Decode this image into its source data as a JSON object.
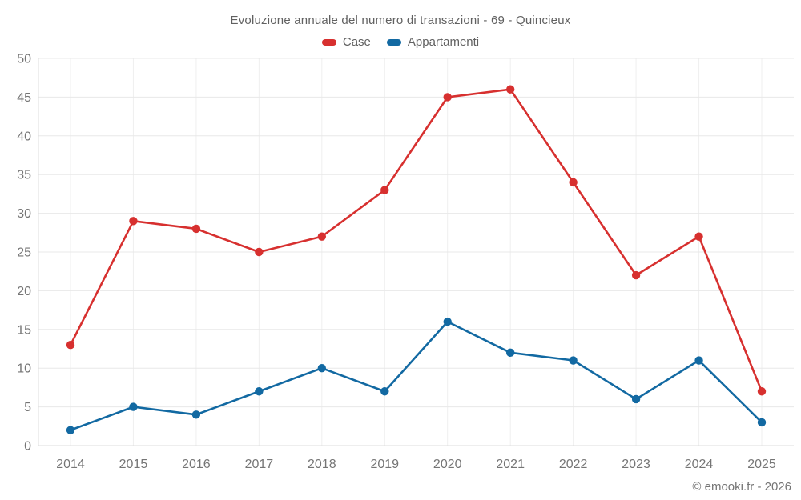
{
  "title": "Evoluzione annuale del numero di transazioni - 69 - Quincieux",
  "legend": [
    {
      "label": "Case",
      "color": "#d7302f"
    },
    {
      "label": "Appartamenti",
      "color": "#1269a2"
    }
  ],
  "footer": "© emooki.fr - 2026",
  "colors": {
    "case_red": "#d7302f",
    "appartamenti_blue": "#1269a2",
    "gridline": "#e8e8e8",
    "axis_line": "#dcdcdc",
    "tick_text": "#757575",
    "title_text": "#616161"
  },
  "chart_data": {
    "type": "line",
    "categories": [
      "2014",
      "2015",
      "2016",
      "2017",
      "2018",
      "2019",
      "2020",
      "2021",
      "2022",
      "2023",
      "2024",
      "2025"
    ],
    "series": [
      {
        "name": "Case",
        "color": "#d7302f",
        "values": [
          13,
          29,
          28,
          25,
          27,
          33,
          45,
          46,
          34,
          22,
          27,
          7
        ]
      },
      {
        "name": "Appartamenti",
        "color": "#1269a2",
        "values": [
          2,
          5,
          4,
          7,
          10,
          7,
          16,
          12,
          11,
          6,
          11,
          3
        ]
      }
    ],
    "title": "Evoluzione annuale del numero di transazioni - 69 - Quincieux",
    "xlabel": "",
    "ylabel": "",
    "ylim": [
      0,
      50
    ],
    "ytick_step": 5,
    "grid": true,
    "legend_position": "top",
    "marker": "circle"
  }
}
